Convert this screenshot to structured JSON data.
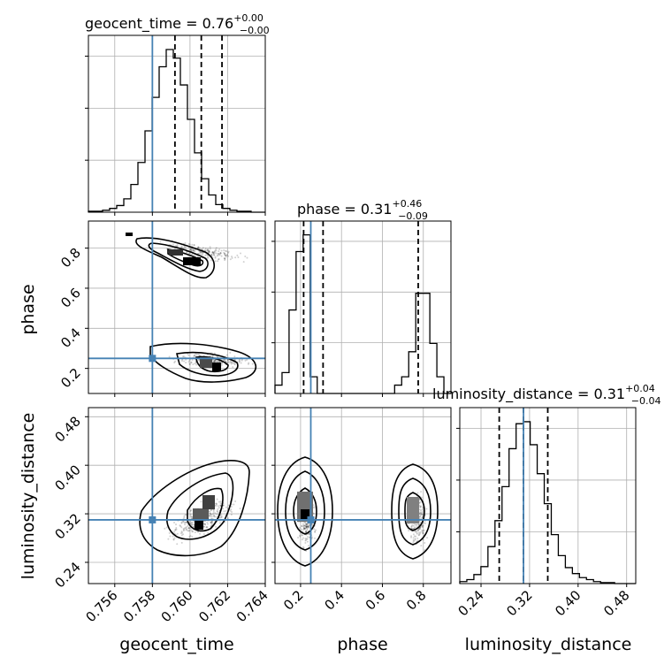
{
  "chart_data": {
    "type": "corner",
    "parameters": [
      "geocent_time",
      "phase",
      "luminosity_distance"
    ],
    "titles": [
      {
        "name": "geocent_time",
        "median": "0.76",
        "plus": "+0.00",
        "minus": "−0.00"
      },
      {
        "name": "phase",
        "median": "0.31",
        "plus": "+0.46",
        "minus": "−0.09"
      },
      {
        "name": "luminosity_distance",
        "median": "0.31",
        "plus": "+0.04",
        "minus": "−0.04"
      }
    ],
    "axis_labels": [
      "geocent_time",
      "phase",
      "luminosity_distance"
    ],
    "ranges": [
      [
        0.7546,
        0.764
      ],
      [
        0.075,
        0.935
      ],
      [
        0.205,
        0.495
      ]
    ],
    "ticks": [
      {
        "values": [
          0.756,
          0.758,
          0.76,
          0.762,
          0.764
        ],
        "labels": [
          "0.756",
          "0.758",
          "0.760",
          "0.762",
          "0.764"
        ]
      },
      {
        "values": [
          0.2,
          0.4,
          0.6,
          0.8
        ],
        "labels": [
          "0.2",
          "0.4",
          "0.6",
          "0.8"
        ]
      },
      {
        "values": [
          0.24,
          0.32,
          0.4,
          0.48
        ],
        "labels": [
          "0.24",
          "0.32",
          "0.40",
          "0.48"
        ]
      }
    ],
    "truths": [
      0.758,
      0.25,
      0.31
    ],
    "truth_color": "#4682b4",
    "quantiles": [
      [
        0.7592,
        0.7606,
        0.7617
      ],
      [
        0.215,
        0.31,
        0.775
      ],
      [
        0.27,
        0.31,
        0.35
      ]
    ],
    "histograms": [
      {
        "edges_start": 0.7546,
        "bin_width": 0.000376,
        "counts": [
          1,
          1,
          2,
          4,
          7,
          14,
          29,
          52,
          85,
          120,
          152,
          170,
          161,
          133,
          97,
          62,
          35,
          18,
          8,
          4,
          2,
          1,
          1,
          0,
          0
        ]
      },
      {
        "edges_start": 0.075,
        "bin_width": 0.0344,
        "counts": [
          2,
          5,
          20,
          34,
          38,
          4,
          0,
          0,
          0,
          0,
          0,
          0,
          0,
          0,
          0,
          0,
          0,
          2,
          4,
          10,
          24,
          24,
          12,
          4,
          0
        ]
      },
      {
        "edges_start": 0.205,
        "bin_width": 0.0116,
        "counts": [
          2,
          4,
          9,
          17,
          37,
          63,
          97,
          135,
          160,
          162,
          139,
          110,
          80,
          49,
          28,
          16,
          10,
          6,
          4,
          2,
          1,
          1,
          0,
          0,
          0
        ]
      }
    ],
    "grid": true
  }
}
